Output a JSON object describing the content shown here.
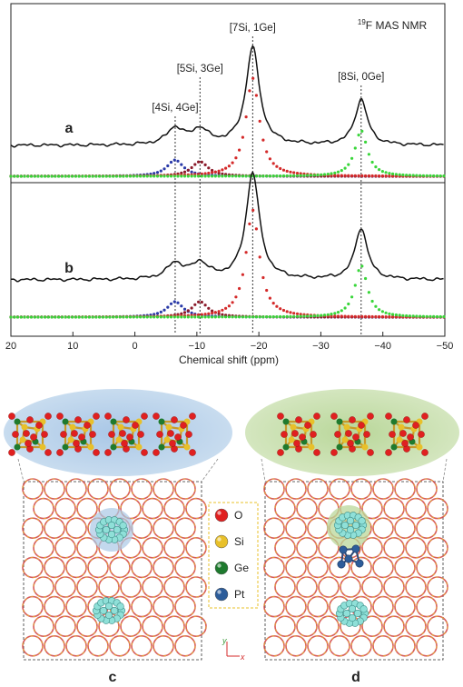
{
  "chart_data": {
    "type": "line",
    "title": "19F MAS NMR",
    "title_sup": "19",
    "title_rest": "F MAS NMR",
    "xlabel": "Chemical shift (ppm)",
    "xlim": [
      20,
      -50
    ],
    "x_ticks": [
      20,
      10,
      0,
      -10,
      -20,
      -30,
      -40,
      -50
    ],
    "x_tick_labels": [
      "20",
      "10",
      "0",
      "−10",
      "−20",
      "−30",
      "−40",
      "−50"
    ],
    "peak_labels": [
      {
        "text": "[4Si, 4Ge]",
        "x": -6.5
      },
      {
        "text": "[5Si, 3Ge]",
        "x": -10.5
      },
      {
        "text": "[7Si, 1Ge]",
        "x": -19
      },
      {
        "text": "[8Si, 0Ge]",
        "x": -36.5
      }
    ],
    "spectra": [
      {
        "label": "a",
        "peaks": [
          {
            "center": -6.5,
            "height": 0.1,
            "width": 1.6,
            "color": "#2a3aa8"
          },
          {
            "center": -10.5,
            "height": 0.09,
            "width": 1.6,
            "color": "#8b1a2a"
          },
          {
            "center": -19,
            "height": 0.6,
            "width": 1.3,
            "color": "#d42a2a"
          },
          {
            "center": -36.5,
            "height": 0.28,
            "width": 1.2,
            "color": "#39d63a"
          }
        ]
      },
      {
        "label": "b",
        "peaks": [
          {
            "center": -6.5,
            "height": 0.09,
            "width": 1.6,
            "color": "#2a3aa8"
          },
          {
            "center": -10.5,
            "height": 0.09,
            "width": 1.6,
            "color": "#8b1a2a"
          },
          {
            "center": -19,
            "height": 0.62,
            "width": 1.3,
            "color": "#d42a2a"
          },
          {
            "center": -36.5,
            "height": 0.3,
            "width": 1.2,
            "color": "#39d63a"
          }
        ]
      }
    ]
  },
  "structures": {
    "panel_labels": [
      "c",
      "d"
    ],
    "axis_y": "y",
    "axis_x": "x",
    "legend": [
      {
        "label": "O",
        "color": "#e02020"
      },
      {
        "label": "Si",
        "color": "#e8c02a"
      },
      {
        "label": "Ge",
        "color": "#1e7a2e"
      },
      {
        "label": "Pt",
        "color": "#2d5d9a"
      }
    ]
  }
}
